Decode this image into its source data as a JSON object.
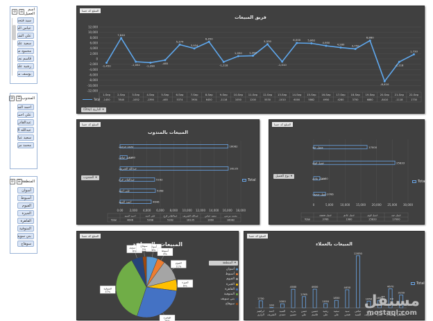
{
  "slicers": {
    "employee": {
      "title": "اسم العميل",
      "items": [
        "سيد فتحي",
        "عباس السيد",
        "علي الشريف",
        "سعيد علي",
        "محمود سليمان",
        "قاسم نجدي",
        "رشيد علي",
        "يوسف مصطفي"
      ]
    },
    "delegate": {
      "title": "المندوب",
      "items": [
        "احمد السيد",
        "علي احمد",
        "عبدالقادر فرج",
        "عبدالله الشريف",
        "سعيد عباس",
        "محمد مرسي"
      ]
    },
    "region": {
      "title": "المنطقة",
      "items": [
        "أسوان",
        "أسيوط",
        "الفيوم",
        "الجيزة",
        "القاهرة",
        "المنوفية",
        "بني سويف",
        "سوهاج"
      ]
    }
  },
  "badge_text": "المبلغ كد حسا",
  "chart1": {
    "title": "فريق المبيعات",
    "legend": "Total",
    "filter_label": "التاريخ (Day)",
    "chart_data": {
      "type": "line",
      "title": "فريق المبيعات",
      "ylim": [
        -12000,
        12000
      ],
      "yticks": [
        "12,000",
        "10,000",
        "8,000",
        "6,000",
        "4,000",
        "2,000",
        "0",
        "-2,000",
        "-4,000",
        "-6,000",
        "-8,000",
        "-10,000",
        "-12,000"
      ],
      "categories": [
        "1-Sep",
        "2-Sep",
        "3-Sep",
        "4-Sep",
        "5-Sep",
        "6-Sep",
        "7-Sep",
        "8-Sep",
        "9-Sep",
        "10-Sep",
        "11-Sep",
        "12-Sep",
        "13-Sep",
        "14-Sep",
        "15-Sep",
        "16-Sep",
        "17-Sep",
        "18-Sep",
        "19-Sep",
        "20-Sep",
        "21-Sep",
        "22-Sep"
      ],
      "values": [
        -1450,
        7840,
        -1052,
        -1390,
        -465,
        5374,
        3934,
        6450,
        -1118,
        1050,
        1200,
        5530,
        -1010,
        6000,
        5862,
        4950,
        4280,
        3750,
        6880,
        -8410,
        -1118,
        1730
      ],
      "labels": [
        "-1,450",
        "7,840",
        "-1,052",
        "-1,390",
        "-465",
        "5,374",
        "3,934",
        "6,450",
        "-1,118",
        "1,050",
        "1,200",
        "5,530",
        "-1,010",
        "6,000",
        "5,862",
        "4,950",
        "4,280",
        "3,750",
        "6,880",
        "-8,410",
        "-1,118",
        "1,730"
      ]
    }
  },
  "chart2": {
    "title": "المبيعات بالمندوب",
    "legend": "Total",
    "filter_label": "المندوب",
    "chart_data": {
      "type": "bar",
      "title": "المبيعات بالمندوب",
      "categories": [
        "محمد مرسي",
        "سعيد عباس",
        "عبدالله الشريف",
        "عبدالقادر فرج",
        "علي احمد",
        "احمد السيد"
      ],
      "values": [
        16082,
        1060,
        16135,
        5162,
        5268,
        4646
      ],
      "labels": [
        "16082",
        "1060",
        "16135",
        "5162",
        "5268",
        "4646"
      ],
      "xlim": [
        0,
        18000
      ],
      "xticks": [
        "0.00",
        "2,000",
        "4,000",
        "6,000",
        "8,000",
        "10,000",
        "12,000",
        "14,000",
        "16,000",
        "18,000"
      ]
    }
  },
  "chart3": {
    "title": "",
    "legend": "Total",
    "filter_label": "نوع العميل",
    "chart_data": {
      "type": "bar",
      "categories": [
        "عميل جيد",
        "عميل قوي",
        "عميل عادي",
        "عميل ضعيف"
      ],
      "values": [
        17000,
        25833,
        1980,
        3766
      ],
      "labels": [
        "17000",
        "25833",
        "1980",
        "3766"
      ],
      "xlim": [
        0,
        30000
      ],
      "xticks": [
        "0",
        "5,000",
        "10,000",
        "15,000",
        "20,000",
        "25,000",
        "30,000"
      ]
    }
  },
  "chart4": {
    "title": "المبيعات بالمنطقة",
    "legend_title": "المنطقة",
    "chart_data": {
      "type": "pie",
      "title": "المبيعات بالمنطقة",
      "categories": [
        "أسوان",
        "أسيوط",
        "الفيوم",
        "الجيزة",
        "القاهرة",
        "المنوفية",
        "بني سويف",
        "سوهاج"
      ],
      "values": [
        6,
        4,
        11,
        6,
        28,
        37,
        6,
        2
      ],
      "labels": [
        "6%",
        "4%",
        "11%",
        "6%",
        "28%",
        "37%",
        "6%",
        "2%"
      ],
      "colors": [
        "#5b9bd5",
        "#ed7d31",
        "#a5a5a5",
        "#ffc000",
        "#4472c4",
        "#70ad47",
        "#264478",
        "#9e480e"
      ]
    }
  },
  "chart5": {
    "title": "المبيعات بالعملاء",
    "legend": "Total",
    "chart_data": {
      "type": "bar",
      "title": "المبيعات بالعملاء",
      "categories": [
        "ابراهيم الزاري",
        "احمد الشريف",
        "السيد حمدي",
        "بدرية حسين",
        "حسن علي",
        "حسين قاسم",
        "رشيد علي",
        "سعيد علي",
        "سيد فتحي",
        "عباس السيد",
        "علي الشريف",
        "قاسم نجدي",
        "محمود سليمان",
        "يوسف مصطفي"
      ],
      "values": [
        1730,
        100,
        1000,
        4580,
        2765,
        4600,
        1050,
        1850,
        4450,
        12830,
        1650,
        1850,
        4670,
        3150
      ],
      "labels": [
        "1730",
        "100",
        "1000",
        "4580",
        "2765",
        "4600",
        "1050",
        "1850",
        "4450",
        "12830",
        "1650",
        "1850",
        "4670",
        "3150"
      ],
      "ylim": [
        0,
        14000
      ]
    }
  },
  "watermark": {
    "arabic": "مستقل",
    "latin": "mostaql.com"
  }
}
